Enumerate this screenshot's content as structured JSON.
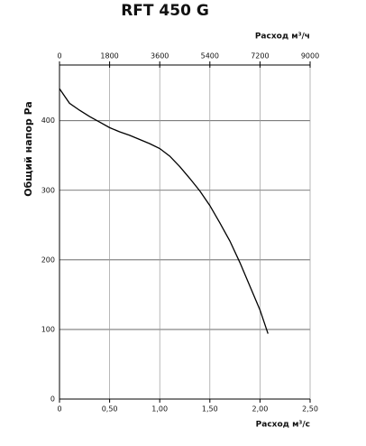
{
  "chart_data": {
    "type": "line",
    "title": "RFT 450 G",
    "ylabel": "Общий напор Pa",
    "xlabel": "Расход м³/с",
    "x2label": "Расход м³/ч",
    "x": [
      0,
      0.1,
      0.2,
      0.3,
      0.4,
      0.5,
      0.6,
      0.7,
      0.8,
      0.9,
      1.0,
      1.1,
      1.2,
      1.3,
      1.4,
      1.5,
      1.6,
      1.7,
      1.8,
      1.9,
      2.0,
      2.08
    ],
    "values": [
      446,
      425,
      415,
      406,
      398,
      390,
      384,
      379,
      373,
      367,
      360,
      349,
      334,
      317,
      299,
      278,
      253,
      227,
      196,
      162,
      128,
      94
    ],
    "color": "#000000",
    "xlim": [
      0,
      2.5
    ],
    "xticks": [
      0,
      {
        "value": 0.5,
        "label": "0,50"
      },
      {
        "value": 1.0,
        "label": "1,00"
      },
      {
        "value": 1.5,
        "label": "1,50"
      },
      {
        "value": 2.0,
        "label": "2,00"
      },
      {
        "value": 2.5,
        "label": "2,50"
      }
    ],
    "x2lim": [
      0,
      9000
    ],
    "x2ticks": [
      0,
      1800,
      3600,
      5400,
      7200,
      9000
    ],
    "ylim": [
      0,
      480
    ],
    "yticks": [
      0,
      100,
      200,
      300,
      400
    ],
    "grid": true
  }
}
